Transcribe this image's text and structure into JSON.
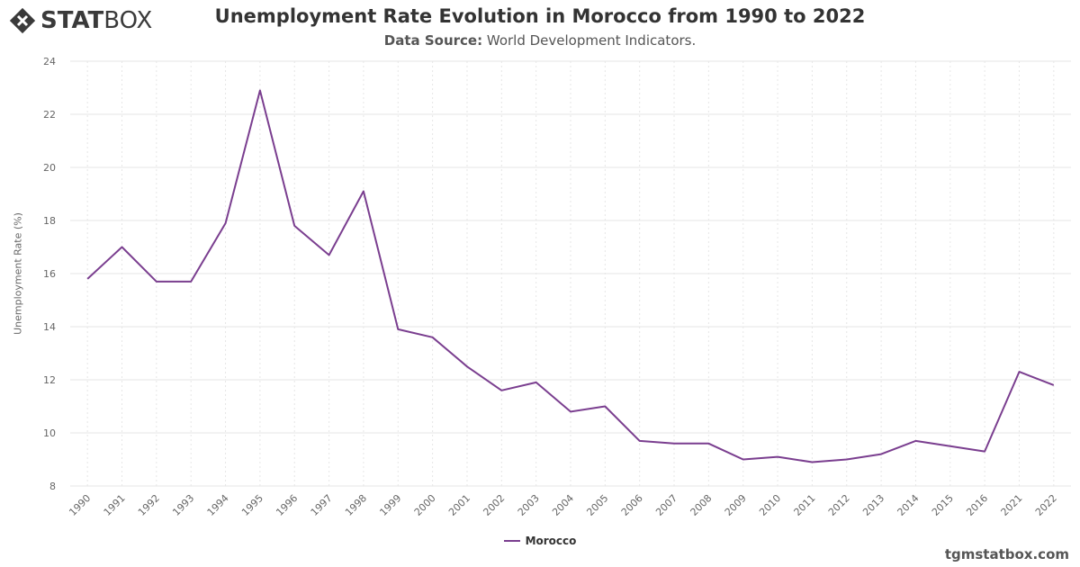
{
  "brand": {
    "logo_bold": "STAT",
    "logo_light": "BOX",
    "logo_icon": "diamond-x-icon",
    "credit": "tgmstatbox.com"
  },
  "header": {
    "source_label": "Data Source:",
    "source_value": "World Development Indicators."
  },
  "colors": {
    "series": "#7a3e8f",
    "grid": "#e6e6e6",
    "axis_text": "#666666"
  },
  "chart_data": {
    "type": "line",
    "title": "Unemployment Rate Evolution in Morocco from 1990 to 2022",
    "ylabel": "Unemployment Rate (%)",
    "xlabel": "",
    "ylim": [
      8,
      24
    ],
    "yticks": [
      8,
      10,
      12,
      14,
      16,
      18,
      20,
      22,
      24
    ],
    "grid": true,
    "legend_position": "bottom-center",
    "categories": [
      "1990",
      "1991",
      "1992",
      "1993",
      "1994",
      "1995",
      "1996",
      "1997",
      "1998",
      "1999",
      "2000",
      "2001",
      "2002",
      "2003",
      "2004",
      "2005",
      "2006",
      "2007",
      "2008",
      "2009",
      "2010",
      "2011",
      "2012",
      "2013",
      "2014",
      "2015",
      "2016",
      "2021",
      "2022"
    ],
    "series": [
      {
        "name": "Morocco",
        "values": [
          15.8,
          17.0,
          15.7,
          15.7,
          17.9,
          22.9,
          17.8,
          16.7,
          19.1,
          13.9,
          13.6,
          12.5,
          11.6,
          11.9,
          10.8,
          11.0,
          9.7,
          9.6,
          9.6,
          9.0,
          9.1,
          8.9,
          9.0,
          9.2,
          9.7,
          9.5,
          9.3,
          12.3,
          11.8
        ]
      }
    ]
  }
}
